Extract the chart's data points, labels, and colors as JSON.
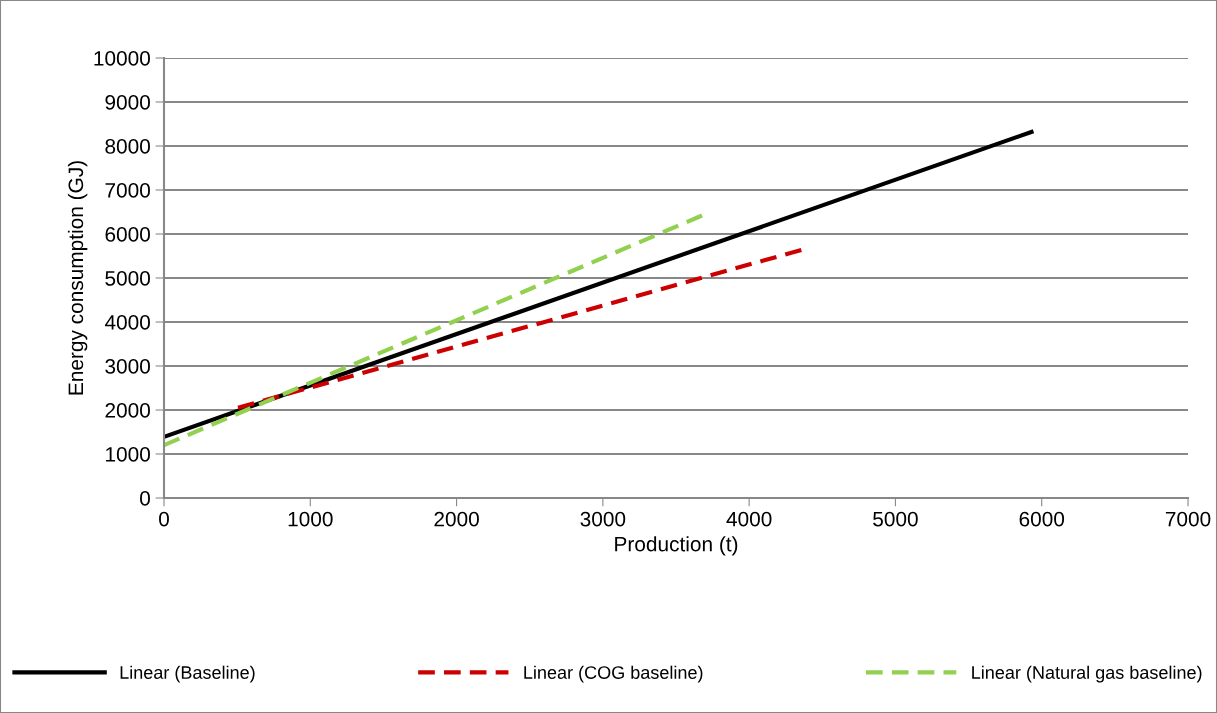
{
  "chart_data": {
    "type": "line",
    "xlabel": "Production (t)",
    "ylabel": "Energy consumption (GJ)",
    "xlim": [
      0,
      7000
    ],
    "xticks": [
      0,
      1000,
      2000,
      3000,
      4000,
      5000,
      6000,
      7000
    ],
    "ylim": [
      0,
      10000
    ],
    "yticks": [
      0,
      1000,
      2000,
      3000,
      4000,
      5000,
      6000,
      7000,
      8000,
      9000,
      10000
    ],
    "grid": "y",
    "legend": "bottom",
    "marker": "none",
    "series": [
      {
        "name": "Linear (Baseline)",
        "color": "#000000",
        "line_style": "solid",
        "x": [
          0,
          5930
        ],
        "values": [
          1390,
          8320
        ]
      },
      {
        "name": "Linear (COG baseline)",
        "color": "#cc0000",
        "line_style": "dashed",
        "x": [
          506,
          4380
        ],
        "values": [
          2050,
          5660
        ]
      },
      {
        "name": "Linear (Natural gas baseline)",
        "color": "#92d050",
        "line_style": "dashed",
        "x": [
          0,
          3685
        ],
        "values": [
          1200,
          6430
        ]
      }
    ]
  }
}
